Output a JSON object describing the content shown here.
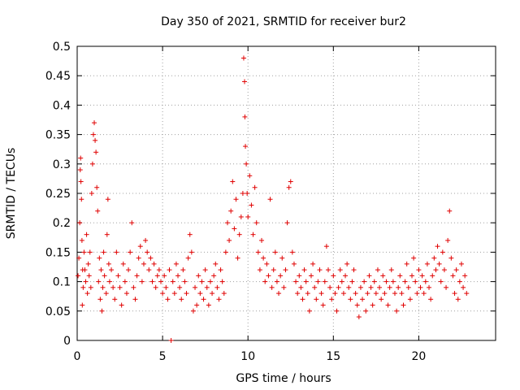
{
  "chart_data": {
    "type": "scatter",
    "title": "Day 350 of 2021, SRMTID for receiver bur2",
    "xlabel": "GPS time / hours",
    "ylabel": "SRMTID / TECUs",
    "xlim": [
      0,
      24.5
    ],
    "ylim": [
      0,
      0.5
    ],
    "xticks": [
      0,
      5,
      10,
      15,
      20
    ],
    "xtick_labels": [
      "0",
      "5",
      "10",
      "15",
      "20"
    ],
    "yticks": [
      0,
      0.05,
      0.1,
      0.15,
      0.2,
      0.25,
      0.3,
      0.35,
      0.4,
      0.45,
      0.5
    ],
    "ytick_labels": [
      "0",
      "0.05",
      "0.1",
      "0.15",
      "0.2",
      "0.25",
      "0.3",
      "0.35",
      "0.4",
      "0.45",
      "0.5"
    ],
    "grid": true,
    "marker": "+",
    "color": "#e00000",
    "series": [
      {
        "name": "SRMTID",
        "points": [
          [
            0.05,
            0.11
          ],
          [
            0.1,
            0.14
          ],
          [
            0.15,
            0.2
          ],
          [
            0.18,
            0.29
          ],
          [
            0.2,
            0.31
          ],
          [
            0.22,
            0.27
          ],
          [
            0.25,
            0.24
          ],
          [
            0.28,
            0.17
          ],
          [
            0.3,
            0.06
          ],
          [
            0.32,
            0.12
          ],
          [
            0.35,
            0.09
          ],
          [
            0.4,
            0.15
          ],
          [
            0.45,
            0.12
          ],
          [
            0.5,
            0.1
          ],
          [
            0.55,
            0.18
          ],
          [
            0.6,
            0.08
          ],
          [
            0.65,
            0.13
          ],
          [
            0.7,
            0.11
          ],
          [
            0.75,
            0.15
          ],
          [
            0.8,
            0.09
          ],
          [
            0.85,
            0.25
          ],
          [
            0.9,
            0.3
          ],
          [
            0.95,
            0.35
          ],
          [
            1.0,
            0.37
          ],
          [
            1.05,
            0.34
          ],
          [
            1.1,
            0.32
          ],
          [
            1.15,
            0.26
          ],
          [
            1.2,
            0.22
          ],
          [
            1.25,
            0.1
          ],
          [
            1.3,
            0.14
          ],
          [
            1.35,
            0.07
          ],
          [
            1.4,
            0.12
          ],
          [
            1.45,
            0.05
          ],
          [
            1.5,
            0.09
          ],
          [
            1.55,
            0.15
          ],
          [
            1.6,
            0.11
          ],
          [
            1.7,
            0.08
          ],
          [
            1.75,
            0.18
          ],
          [
            1.8,
            0.24
          ],
          [
            1.85,
            0.13
          ],
          [
            1.9,
            0.1
          ],
          [
            2.0,
            0.12
          ],
          [
            2.1,
            0.09
          ],
          [
            2.2,
            0.07
          ],
          [
            2.3,
            0.15
          ],
          [
            2.4,
            0.11
          ],
          [
            2.5,
            0.09
          ],
          [
            2.6,
            0.06
          ],
          [
            2.7,
            0.13
          ],
          [
            2.8,
            0.1
          ],
          [
            2.9,
            0.08
          ],
          [
            3.0,
            0.12
          ],
          [
            3.1,
            0.15
          ],
          [
            3.2,
            0.2
          ],
          [
            3.3,
            0.09
          ],
          [
            3.4,
            0.07
          ],
          [
            3.5,
            0.11
          ],
          [
            3.6,
            0.14
          ],
          [
            3.7,
            0.16
          ],
          [
            3.8,
            0.1
          ],
          [
            3.9,
            0.13
          ],
          [
            4.0,
            0.17
          ],
          [
            4.1,
            0.15
          ],
          [
            4.2,
            0.12
          ],
          [
            4.3,
            0.14
          ],
          [
            4.4,
            0.1
          ],
          [
            4.5,
            0.13
          ],
          [
            4.6,
            0.09
          ],
          [
            4.7,
            0.11
          ],
          [
            4.8,
            0.12
          ],
          [
            4.9,
            0.1
          ],
          [
            5.0,
            0.08
          ],
          [
            5.1,
            0.11
          ],
          [
            5.2,
            0.09
          ],
          [
            5.3,
            0.07
          ],
          [
            5.4,
            0.12
          ],
          [
            5.5,
            0.0
          ],
          [
            5.6,
            0.1
          ],
          [
            5.7,
            0.08
          ],
          [
            5.8,
            0.13
          ],
          [
            5.9,
            0.11
          ],
          [
            6.0,
            0.09
          ],
          [
            6.1,
            0.07
          ],
          [
            6.2,
            0.12
          ],
          [
            6.3,
            0.1
          ],
          [
            6.4,
            0.08
          ],
          [
            6.5,
            0.14
          ],
          [
            6.6,
            0.18
          ],
          [
            6.7,
            0.15
          ],
          [
            6.8,
            0.05
          ],
          [
            6.9,
            0.09
          ],
          [
            7.0,
            0.06
          ],
          [
            7.1,
            0.11
          ],
          [
            7.2,
            0.08
          ],
          [
            7.3,
            0.1
          ],
          [
            7.4,
            0.07
          ],
          [
            7.5,
            0.12
          ],
          [
            7.6,
            0.09
          ],
          [
            7.7,
            0.06
          ],
          [
            7.8,
            0.1
          ],
          [
            7.9,
            0.08
          ],
          [
            8.0,
            0.11
          ],
          [
            8.1,
            0.13
          ],
          [
            8.2,
            0.09
          ],
          [
            8.3,
            0.07
          ],
          [
            8.4,
            0.12
          ],
          [
            8.5,
            0.1
          ],
          [
            8.6,
            0.08
          ],
          [
            8.7,
            0.15
          ],
          [
            8.8,
            0.2
          ],
          [
            8.9,
            0.17
          ],
          [
            9.0,
            0.22
          ],
          [
            9.1,
            0.27
          ],
          [
            9.2,
            0.19
          ],
          [
            9.3,
            0.24
          ],
          [
            9.4,
            0.14
          ],
          [
            9.5,
            0.18
          ],
          [
            9.6,
            0.21
          ],
          [
            9.7,
            0.25
          ],
          [
            9.75,
            0.48
          ],
          [
            9.8,
            0.44
          ],
          [
            9.82,
            0.38
          ],
          [
            9.85,
            0.33
          ],
          [
            9.9,
            0.3
          ],
          [
            9.95,
            0.25
          ],
          [
            10.0,
            0.21
          ],
          [
            10.1,
            0.28
          ],
          [
            10.2,
            0.23
          ],
          [
            10.3,
            0.18
          ],
          [
            10.4,
            0.26
          ],
          [
            10.5,
            0.2
          ],
          [
            10.6,
            0.15
          ],
          [
            10.7,
            0.12
          ],
          [
            10.8,
            0.17
          ],
          [
            10.9,
            0.14
          ],
          [
            11.0,
            0.1
          ],
          [
            11.1,
            0.13
          ],
          [
            11.2,
            0.11
          ],
          [
            11.3,
            0.24
          ],
          [
            11.4,
            0.09
          ],
          [
            11.5,
            0.12
          ],
          [
            11.6,
            0.15
          ],
          [
            11.7,
            0.1
          ],
          [
            11.8,
            0.08
          ],
          [
            11.9,
            0.11
          ],
          [
            12.0,
            0.14
          ],
          [
            12.1,
            0.09
          ],
          [
            12.2,
            0.12
          ],
          [
            12.3,
            0.2
          ],
          [
            12.4,
            0.26
          ],
          [
            12.5,
            0.27
          ],
          [
            12.6,
            0.15
          ],
          [
            12.7,
            0.13
          ],
          [
            12.8,
            0.1
          ],
          [
            12.9,
            0.08
          ],
          [
            13.0,
            0.11
          ],
          [
            13.1,
            0.09
          ],
          [
            13.2,
            0.07
          ],
          [
            13.3,
            0.12
          ],
          [
            13.4,
            0.1
          ],
          [
            13.5,
            0.08
          ],
          [
            13.6,
            0.05
          ],
          [
            13.7,
            0.11
          ],
          [
            13.8,
            0.13
          ],
          [
            13.9,
            0.09
          ],
          [
            14.0,
            0.07
          ],
          [
            14.1,
            0.1
          ],
          [
            14.2,
            0.12
          ],
          [
            14.3,
            0.08
          ],
          [
            14.4,
            0.06
          ],
          [
            14.5,
            0.1
          ],
          [
            14.6,
            0.16
          ],
          [
            14.7,
            0.12
          ],
          [
            14.8,
            0.09
          ],
          [
            14.9,
            0.07
          ],
          [
            15.0,
            0.11
          ],
          [
            15.1,
            0.08
          ],
          [
            15.2,
            0.05
          ],
          [
            15.3,
            0.09
          ],
          [
            15.4,
            0.12
          ],
          [
            15.5,
            0.1
          ],
          [
            15.6,
            0.08
          ],
          [
            15.7,
            0.11
          ],
          [
            15.8,
            0.13
          ],
          [
            15.9,
            0.09
          ],
          [
            16.0,
            0.07
          ],
          [
            16.1,
            0.1
          ],
          [
            16.2,
            0.12
          ],
          [
            16.3,
            0.08
          ],
          [
            16.4,
            0.06
          ],
          [
            16.5,
            0.04
          ],
          [
            16.6,
            0.09
          ],
          [
            16.7,
            0.07
          ],
          [
            16.8,
            0.1
          ],
          [
            16.9,
            0.05
          ],
          [
            17.0,
            0.08
          ],
          [
            17.1,
            0.11
          ],
          [
            17.2,
            0.09
          ],
          [
            17.3,
            0.06
          ],
          [
            17.4,
            0.1
          ],
          [
            17.5,
            0.08
          ],
          [
            17.6,
            0.12
          ],
          [
            17.7,
            0.09
          ],
          [
            17.8,
            0.07
          ],
          [
            17.9,
            0.11
          ],
          [
            18.0,
            0.08
          ],
          [
            18.1,
            0.1
          ],
          [
            18.2,
            0.06
          ],
          [
            18.3,
            0.09
          ],
          [
            18.4,
            0.12
          ],
          [
            18.5,
            0.1
          ],
          [
            18.6,
            0.08
          ],
          [
            18.7,
            0.05
          ],
          [
            18.8,
            0.09
          ],
          [
            18.9,
            0.11
          ],
          [
            19.0,
            0.08
          ],
          [
            19.1,
            0.06
          ],
          [
            19.2,
            0.1
          ],
          [
            19.3,
            0.13
          ],
          [
            19.4,
            0.09
          ],
          [
            19.5,
            0.07
          ],
          [
            19.6,
            0.11
          ],
          [
            19.7,
            0.14
          ],
          [
            19.8,
            0.1
          ],
          [
            19.9,
            0.08
          ],
          [
            20.0,
            0.12
          ],
          [
            20.1,
            0.09
          ],
          [
            20.2,
            0.11
          ],
          [
            20.3,
            0.08
          ],
          [
            20.4,
            0.1
          ],
          [
            20.5,
            0.13
          ],
          [
            20.6,
            0.09
          ],
          [
            20.7,
            0.07
          ],
          [
            20.8,
            0.11
          ],
          [
            20.9,
            0.14
          ],
          [
            21.0,
            0.12
          ],
          [
            21.1,
            0.16
          ],
          [
            21.2,
            0.13
          ],
          [
            21.3,
            0.1
          ],
          [
            21.4,
            0.15
          ],
          [
            21.5,
            0.12
          ],
          [
            21.6,
            0.09
          ],
          [
            21.7,
            0.17
          ],
          [
            21.8,
            0.22
          ],
          [
            21.9,
            0.14
          ],
          [
            22.0,
            0.11
          ],
          [
            22.1,
            0.08
          ],
          [
            22.2,
            0.12
          ],
          [
            22.3,
            0.07
          ],
          [
            22.4,
            0.1
          ],
          [
            22.5,
            0.13
          ],
          [
            22.6,
            0.09
          ],
          [
            22.7,
            0.11
          ],
          [
            22.8,
            0.08
          ]
        ]
      }
    ]
  }
}
